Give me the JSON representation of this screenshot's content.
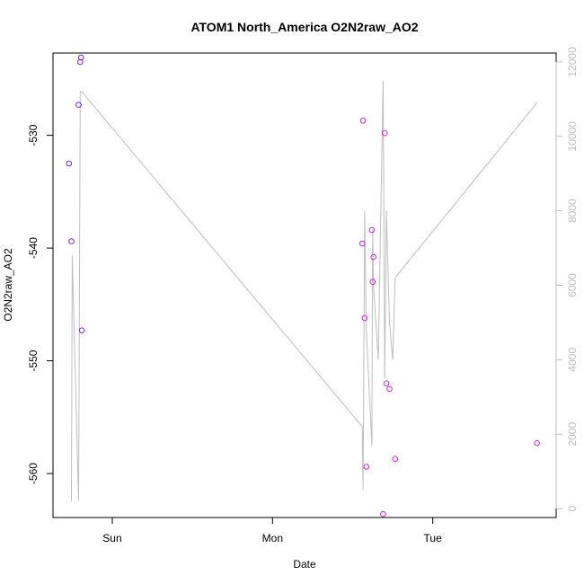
{
  "chart_data": {
    "type": "scatter",
    "title": "ATOM1 North_America O2N2raw_AO2",
    "xlabel": "Date",
    "ylabel": "O2N2raw_AO2",
    "x_ticks": [
      {
        "label": "Sun",
        "value": 1.0
      },
      {
        "label": "Mon",
        "value": 2.0
      },
      {
        "label": "Tue",
        "value": 3.0
      }
    ],
    "y_ticks": [
      -530,
      -540,
      -550,
      -560
    ],
    "y_tick_labels": [
      "-530",
      "-540",
      "-550",
      "-560"
    ],
    "ylim": [
      -563.9,
      -522.7
    ],
    "xlim": [
      0.63,
      3.77
    ],
    "secondary_axis": {
      "ticks": [
        0,
        2000,
        4000,
        6000,
        8000,
        10000,
        12000
      ],
      "tick_labels": [
        "0",
        "2000",
        "4000",
        "6000",
        "8000",
        "10000",
        "12000"
      ],
      "ylim": [
        -240,
        12240
      ],
      "color": "#bebebe"
    },
    "points": [
      {
        "x": 0.73,
        "y": -532.5,
        "color": "#6a28f0"
      },
      {
        "x": 0.745,
        "y": -539.4,
        "color": "#6a28f0"
      },
      {
        "x": 0.79,
        "y": -527.3,
        "color": "#6f24ee"
      },
      {
        "x": 0.8,
        "y": -523.5,
        "color": "#7322ee"
      },
      {
        "x": 0.805,
        "y": -523.1,
        "color": "#7522ee"
      },
      {
        "x": 0.81,
        "y": -547.3,
        "color": "#7622ee"
      },
      {
        "x": 2.56,
        "y": -539.6,
        "color": "#d21ce6"
      },
      {
        "x": 2.565,
        "y": -528.7,
        "color": "#d41ce6"
      },
      {
        "x": 2.575,
        "y": -546.2,
        "color": "#d61ce6"
      },
      {
        "x": 2.585,
        "y": -559.4,
        "color": "#d61ce6"
      },
      {
        "x": 2.62,
        "y": -538.4,
        "color": "#d81ce6"
      },
      {
        "x": 2.625,
        "y": -543.0,
        "color": "#d81ce6"
      },
      {
        "x": 2.63,
        "y": -540.8,
        "color": "#da1ce6"
      },
      {
        "x": 2.69,
        "y": -563.6,
        "color": "#dc1ce6"
      },
      {
        "x": 2.7,
        "y": -529.8,
        "color": "#dc1ce6"
      },
      {
        "x": 2.71,
        "y": -552.0,
        "color": "#de1ce6"
      },
      {
        "x": 2.73,
        "y": -552.5,
        "color": "#de1ce6"
      },
      {
        "x": 2.765,
        "y": -558.7,
        "color": "#e01ce6"
      },
      {
        "x": 3.65,
        "y": -557.3,
        "color": "#e61ce6"
      }
    ],
    "secondary_line": {
      "color": "#bebebe",
      "x": [
        0.745,
        0.75,
        0.79,
        0.8,
        0.81,
        2.56,
        2.565,
        2.575,
        2.585,
        2.62,
        2.625,
        2.63,
        2.66,
        2.69,
        2.7,
        2.71,
        2.73,
        2.75,
        2.765,
        3.65
      ],
      "y": [
        200,
        6800,
        200,
        11200,
        11200,
        2200,
        500,
        8000,
        4800,
        1700,
        7500,
        6000,
        4000,
        11500,
        3500,
        8000,
        5000,
        4000,
        6200,
        10900
      ]
    }
  }
}
